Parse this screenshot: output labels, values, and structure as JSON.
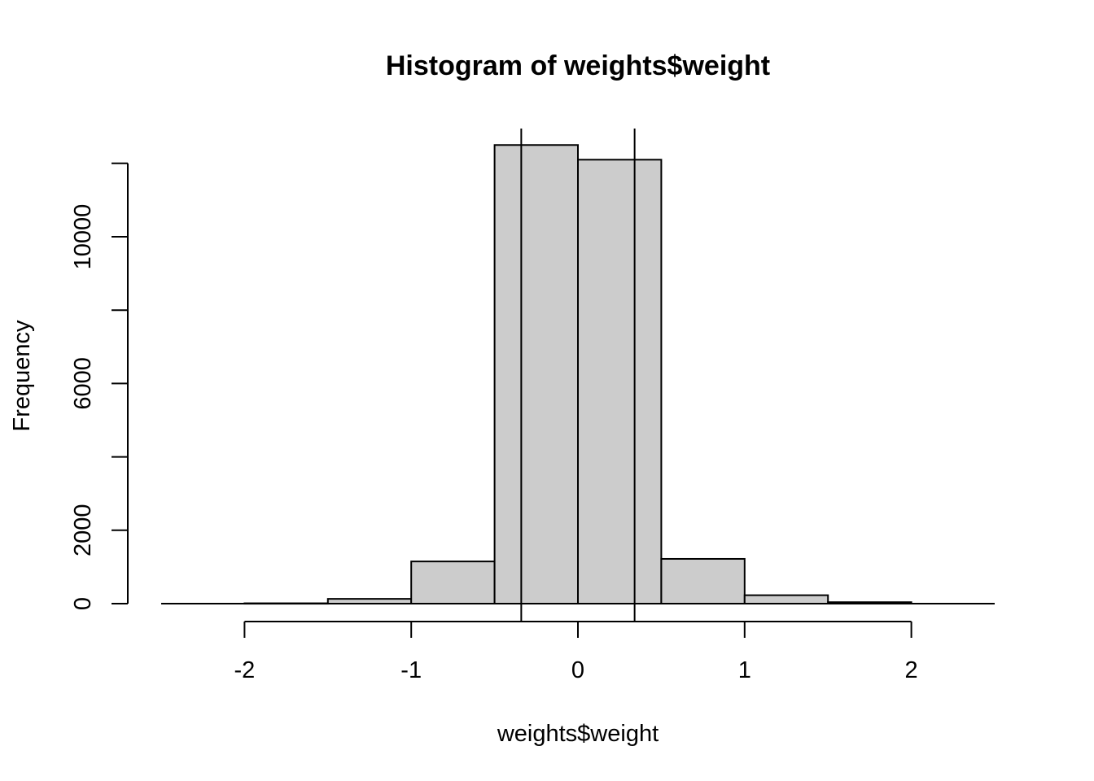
{
  "chart_data": {
    "type": "bar",
    "title": "Histogram of weights$weight",
    "xlabel": "weights$weight",
    "ylabel": "Frequency",
    "bins": [
      {
        "x0": -2.0,
        "x1": -1.5,
        "count": 10
      },
      {
        "x0": -1.5,
        "x1": -1.0,
        "count": 130
      },
      {
        "x0": -1.0,
        "x1": -0.5,
        "count": 1150
      },
      {
        "x0": -0.5,
        "x1": 0.0,
        "count": 12500
      },
      {
        "x0": 0.0,
        "x1": 0.5,
        "count": 12100
      },
      {
        "x0": 0.5,
        "x1": 1.0,
        "count": 1220
      },
      {
        "x0": 1.0,
        "x1": 1.5,
        "count": 230
      },
      {
        "x0": 1.5,
        "x1": 2.0,
        "count": 40
      }
    ],
    "vertical_lines": [
      -0.34,
      0.34
    ],
    "xlim": [
      -2.5,
      2.5
    ],
    "ylim": [
      0,
      13000
    ],
    "x_ticks": [
      -2,
      -1,
      0,
      1,
      2
    ],
    "x_tick_labels": [
      "-2",
      "-1",
      "0",
      "1",
      "2"
    ],
    "y_ticks": [
      0,
      2000,
      4000,
      6000,
      8000,
      10000,
      12000
    ],
    "y_tick_labels": [
      "0",
      "2000",
      "",
      "6000",
      "",
      "10000",
      ""
    ],
    "grid": false,
    "bar_color": "#cccccc",
    "edge_color": "#000000"
  }
}
